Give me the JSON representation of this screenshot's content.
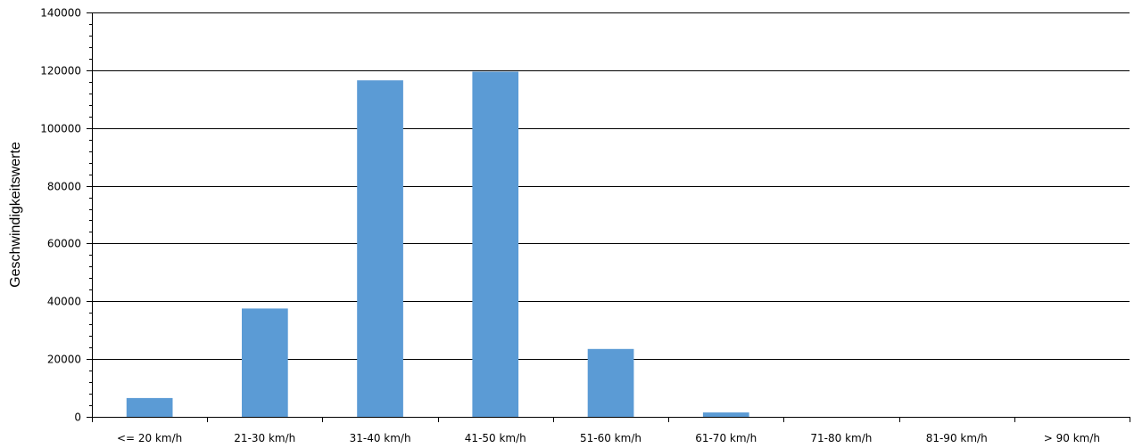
{
  "chart_data": {
    "type": "bar",
    "categories": [
      "<= 20 km/h",
      "21-30 km/h",
      "31-40 km/h",
      "41-50 km/h",
      "51-60 km/h",
      "61-70 km/h",
      "71-80 km/h",
      "81-90 km/h",
      "> 90 km/h"
    ],
    "values": [
      6500,
      37500,
      116500,
      119500,
      23500,
      1500,
      0,
      0,
      0
    ],
    "title": "",
    "xlabel": "",
    "ylabel": "Geschwindigkeitswerte",
    "ylim": [
      0,
      140000
    ],
    "yticks": [
      0,
      20000,
      40000,
      60000,
      80000,
      100000,
      120000,
      140000
    ],
    "grid": true,
    "bar_color": "#5B9BD5"
  }
}
